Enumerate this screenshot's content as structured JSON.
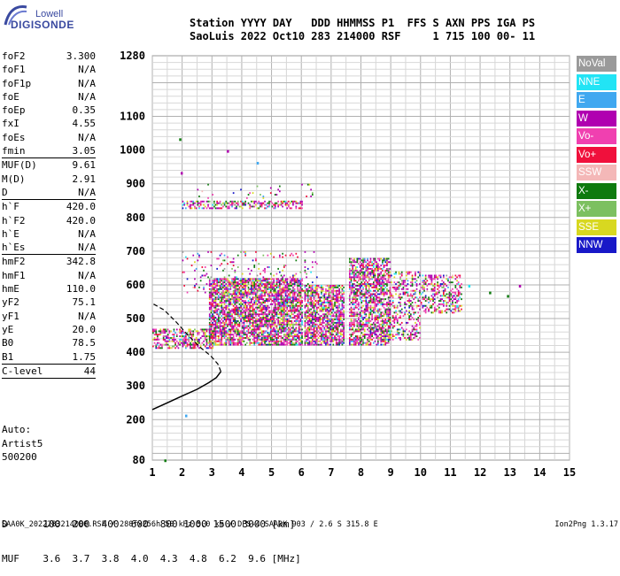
{
  "logo": {
    "top": "Lowell",
    "main": "DIGISONDE"
  },
  "header": {
    "line1": "Station YYYY DAY   DDD HHMMSS P1  FFS S AXN PPS IGA PS",
    "line2": "SaoLuis 2022 Oct10 283 214000 RSF     1 715 100 00- 11"
  },
  "params": [
    {
      "name": "foF2",
      "value": "3.300",
      "sep": false
    },
    {
      "name": "foF1",
      "value": "N/A",
      "sep": false
    },
    {
      "name": "foF1p",
      "value": "N/A",
      "sep": false
    },
    {
      "name": "foE",
      "value": "N/A",
      "sep": false
    },
    {
      "name": "foEp",
      "value": "0.35",
      "sep": false
    },
    {
      "name": "fxI",
      "value": "4.55",
      "sep": false
    },
    {
      "name": "foEs",
      "value": "N/A",
      "sep": false
    },
    {
      "name": "fmin",
      "value": "3.05",
      "sep": true
    },
    {
      "name": "MUF(D)",
      "value": "9.61",
      "sep": false
    },
    {
      "name": "M(D)",
      "value": "2.91",
      "sep": false
    },
    {
      "name": "D",
      "value": "N/A",
      "sep": true
    },
    {
      "name": "h`F",
      "value": "420.0",
      "sep": false
    },
    {
      "name": "h`F2",
      "value": "420.0",
      "sep": false
    },
    {
      "name": "h`E",
      "value": "N/A",
      "sep": false
    },
    {
      "name": "h`Es",
      "value": "N/A",
      "sep": true
    },
    {
      "name": "hmF2",
      "value": "342.8",
      "sep": false
    },
    {
      "name": "hmF1",
      "value": "N/A",
      "sep": false
    },
    {
      "name": "hmE",
      "value": "110.0",
      "sep": false
    },
    {
      "name": "yF2",
      "value": "75.1",
      "sep": false
    },
    {
      "name": "yF1",
      "value": "N/A",
      "sep": false
    },
    {
      "name": "yE",
      "value": "20.0",
      "sep": false
    },
    {
      "name": "B0",
      "value": "78.5",
      "sep": false
    },
    {
      "name": "B1",
      "value": "1.75",
      "sep": true
    },
    {
      "name": "C-level",
      "value": "44",
      "sep": true
    }
  ],
  "auto": {
    "line1": "Auto:",
    "line2": "Artist5",
    "line3": "500200"
  },
  "legend": [
    {
      "label": "NoVal",
      "color": "#9a9a9a"
    },
    {
      "label": "NNE",
      "color": "#22e4f5"
    },
    {
      "label": "E",
      "color": "#40a8f0"
    },
    {
      "label": "W",
      "color": "#b000b0"
    },
    {
      "label": "Vo-",
      "color": "#f040b0"
    },
    {
      "label": "Vo+",
      "color": "#f0103c"
    },
    {
      "label": "SSW",
      "color": "#f4b8b8"
    },
    {
      "label": "X-",
      "color": "#0e7a0e"
    },
    {
      "label": "X+",
      "color": "#7cc060"
    },
    {
      "label": "SSE",
      "color": "#d8d820"
    },
    {
      "label": "NNW",
      "color": "#1818c8"
    }
  ],
  "dmuf": {
    "d_line": "D      100  200  400  600  800 1000 1500 3000 [km]",
    "muf_line": "MUF    3.6  3.7  3.8  4.0  4.3  4.8  6.2  9.6 [MHz]"
  },
  "footer": {
    "left": "SAA0K_2022283214000.RSF / 280fx256h 50 kHz 5.0 km / DPS-4 SAA0K 903 / 2.6 S 315.8 E",
    "right": "Ion2Png 1.3.17"
  },
  "chart_data": {
    "type": "scatter",
    "title": "",
    "xlabel": "",
    "ylabel": "",
    "xlim": [
      1,
      15
    ],
    "ylim": [
      80,
      1280
    ],
    "x_ticks": [
      1,
      2,
      3,
      4,
      5,
      6,
      7,
      8,
      9,
      10,
      11,
      12,
      13,
      14,
      15
    ],
    "y_ticks": [
      80,
      200,
      300,
      400,
      500,
      600,
      700,
      800,
      900,
      1000,
      1100,
      1280
    ],
    "grid": true,
    "echo_clusters": [
      {
        "f_min": 1.0,
        "f_max": 3.0,
        "h_min": 415,
        "h_max": 470,
        "density": 0.55
      },
      {
        "f_min": 2.9,
        "f_max": 6.0,
        "h_min": 425,
        "h_max": 620,
        "density": 0.75
      },
      {
        "f_min": 6.1,
        "f_max": 7.4,
        "h_min": 425,
        "h_max": 600,
        "density": 0.7
      },
      {
        "f_min": 7.6,
        "f_max": 9.0,
        "h_min": 425,
        "h_max": 680,
        "density": 0.65
      },
      {
        "f_min": 9.0,
        "f_max": 10.0,
        "h_min": 440,
        "h_max": 640,
        "density": 0.35
      },
      {
        "f_min": 10.0,
        "f_max": 11.4,
        "h_min": 520,
        "h_max": 630,
        "density": 0.4
      },
      {
        "f_min": 2.0,
        "f_max": 6.0,
        "h_min": 830,
        "h_max": 850,
        "density": 0.5
      },
      {
        "f_min": 2.0,
        "f_max": 6.5,
        "h_min": 580,
        "h_max": 700,
        "density": 0.08
      },
      {
        "f_min": 2.5,
        "f_max": 6.5,
        "h_min": 860,
        "h_max": 900,
        "density": 0.05
      }
    ],
    "profile": [
      [
        1.0,
        230
      ],
      [
        1.5,
        250
      ],
      [
        2.0,
        270
      ],
      [
        2.5,
        290
      ],
      [
        2.9,
        310
      ],
      [
        3.15,
        325
      ],
      [
        3.3,
        342.8
      ],
      [
        3.2,
        365
      ],
      [
        2.95,
        390
      ],
      [
        2.6,
        415
      ],
      [
        2.2,
        450
      ],
      [
        1.8,
        490
      ],
      [
        1.4,
        525
      ],
      [
        1.0,
        545
      ]
    ]
  }
}
